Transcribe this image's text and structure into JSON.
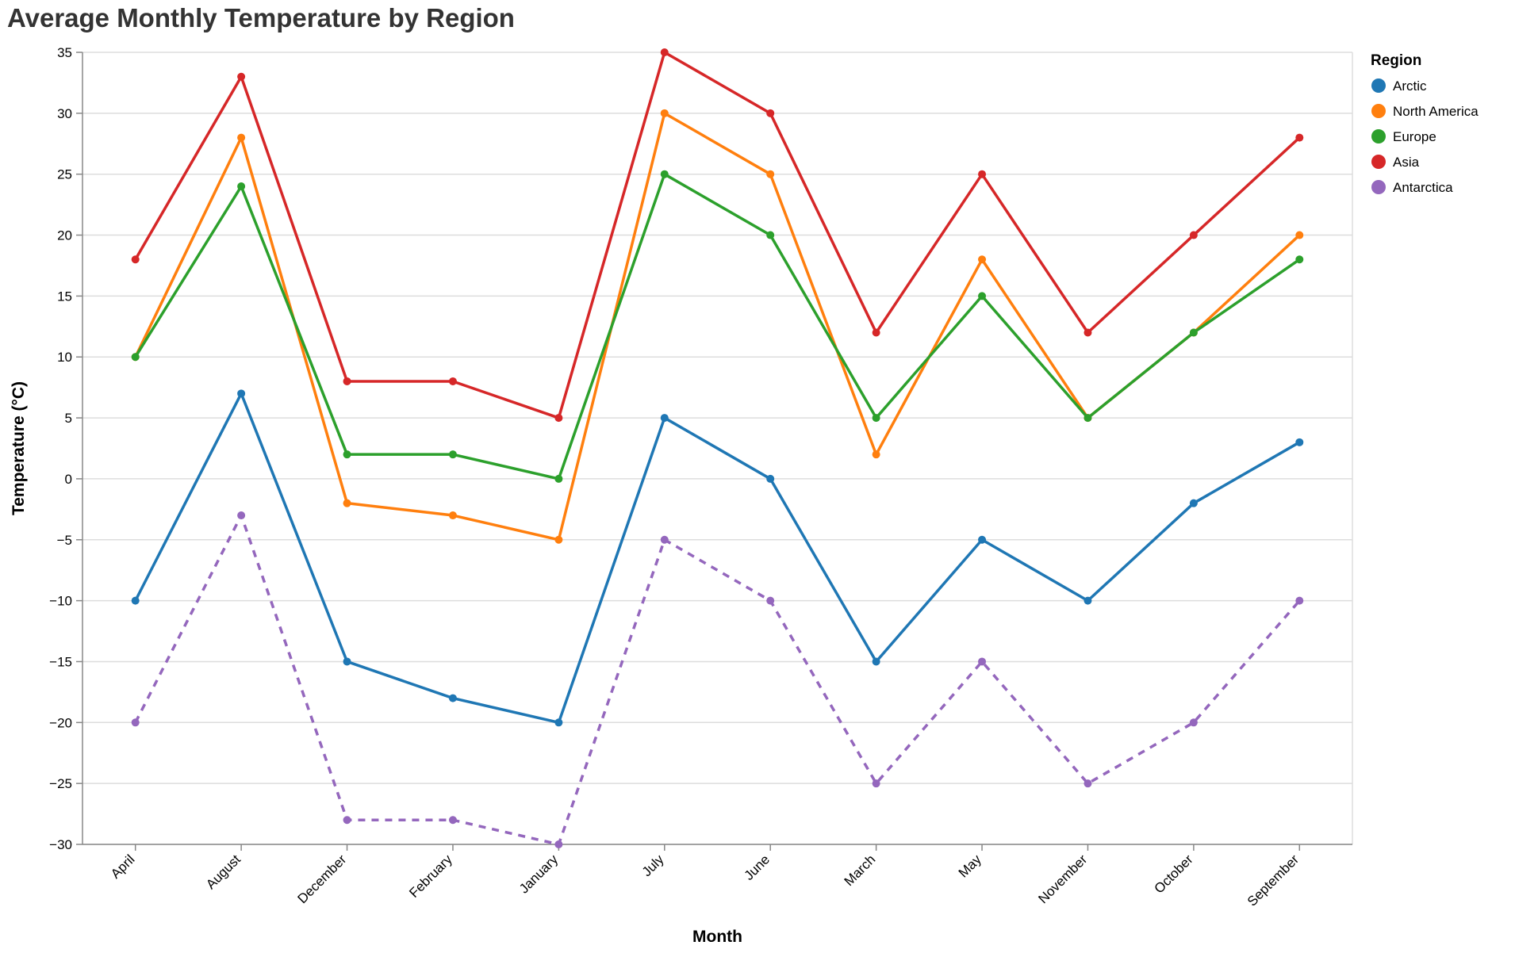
{
  "chart_data": {
    "type": "line",
    "title": "Average Monthly Temperature by Region",
    "xlabel": "Month",
    "ylabel": "Temperature (°C)",
    "categories": [
      "April",
      "August",
      "December",
      "February",
      "January",
      "July",
      "June",
      "March",
      "May",
      "November",
      "October",
      "September"
    ],
    "y_ticks": [
      35,
      30,
      25,
      20,
      15,
      10,
      5,
      0,
      -5,
      -10,
      -15,
      -20,
      -25,
      -30
    ],
    "ylim": [
      -30,
      35
    ],
    "grid": true,
    "legend": {
      "title": "Region",
      "placement": "top-right"
    },
    "series": [
      {
        "name": "Arctic",
        "color": "#1f77b4",
        "dashed": false,
        "values": [
          -10,
          7,
          -15,
          -18,
          -20,
          5,
          0,
          -15,
          -5,
          -10,
          -2,
          3
        ]
      },
      {
        "name": "North America",
        "color": "#ff7f0e",
        "dashed": false,
        "values": [
          10,
          28,
          -2,
          -3,
          -5,
          30,
          25,
          2,
          18,
          5,
          12,
          20
        ]
      },
      {
        "name": "Europe",
        "color": "#2ca02c",
        "dashed": false,
        "values": [
          10,
          24,
          2,
          2,
          0,
          25,
          20,
          5,
          15,
          5,
          12,
          18
        ]
      },
      {
        "name": "Asia",
        "color": "#d62728",
        "dashed": false,
        "values": [
          18,
          33,
          8,
          8,
          5,
          35,
          30,
          12,
          25,
          12,
          20,
          28
        ]
      },
      {
        "name": "Antarctica",
        "color": "#9467bd",
        "dashed": true,
        "values": [
          -20,
          -3,
          -28,
          -28,
          -30,
          -5,
          -10,
          -25,
          -15,
          -25,
          -20,
          -10
        ]
      }
    ]
  }
}
